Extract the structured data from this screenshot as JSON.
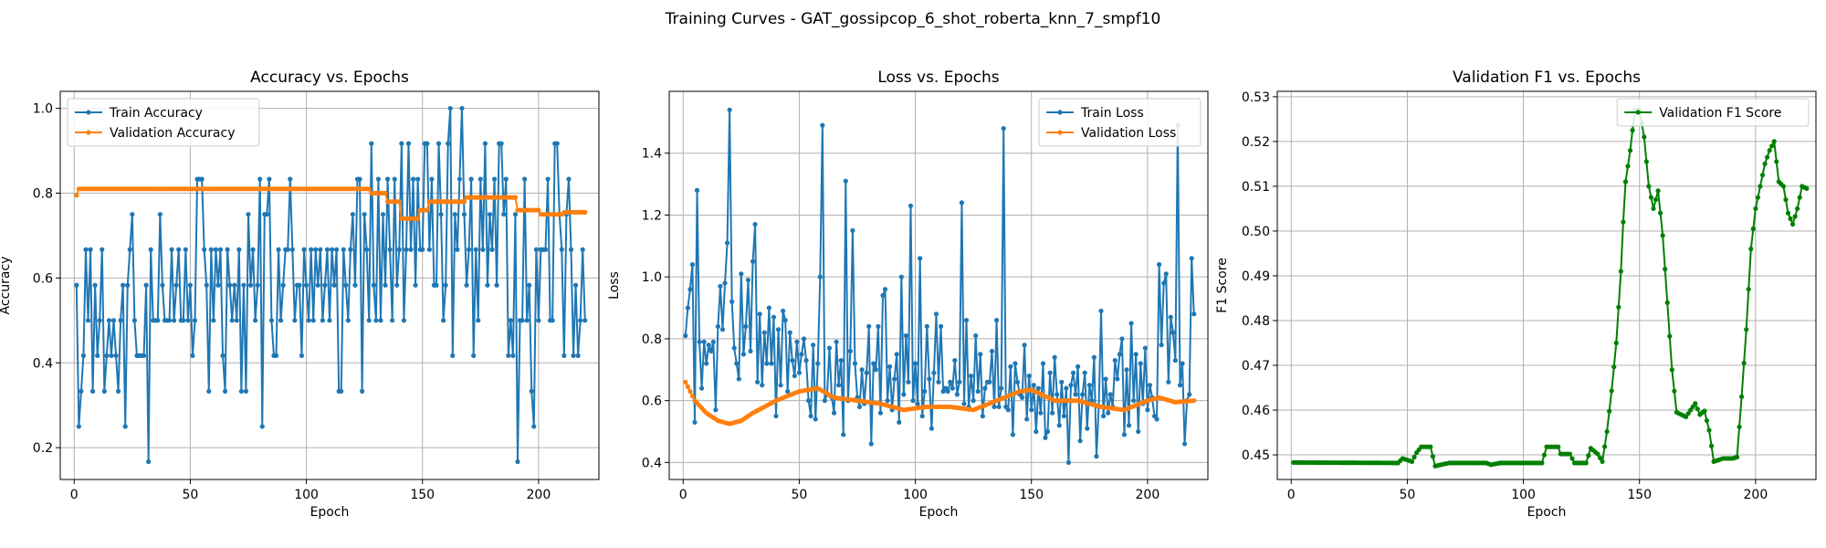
{
  "figure": {
    "title": "Training Curves - GAT_gossipcop_6_shot_roberta_knn_7_smpf10"
  },
  "colors": {
    "train": "#1f77b4",
    "validation": "#ff7f0e",
    "f1": "#008000"
  },
  "chart_data": [
    {
      "type": "line",
      "title": "Accuracy vs. Epochs",
      "xlabel": "Epoch",
      "ylabel": "Accuracy",
      "xlim": [
        -6,
        226
      ],
      "ylim": [
        0.125,
        1.04
      ],
      "xticks": [
        0,
        50,
        100,
        150,
        200
      ],
      "yticks": [
        0.2,
        0.4,
        0.6,
        0.8,
        1.0
      ],
      "ytick_labels": [
        "0.2",
        "0.4",
        "0.6",
        "0.8",
        "1.0"
      ],
      "grid": true,
      "legend_position": "upper left",
      "series": [
        {
          "name": "Train Accuracy",
          "color": "#1f77b4",
          "start_epoch": 1,
          "values": [
            0.583,
            0.25,
            0.333,
            0.417,
            0.667,
            0.5,
            0.667,
            0.333,
            0.583,
            0.417,
            0.5,
            0.667,
            0.333,
            0.417,
            0.5,
            0.417,
            0.5,
            0.417,
            0.333,
            0.5,
            0.583,
            0.25,
            0.583,
            0.667,
            0.75,
            0.5,
            0.417,
            0.417,
            0.417,
            0.417,
            0.583,
            0.167,
            0.667,
            0.5,
            0.5,
            0.5,
            0.75,
            0.583,
            0.5,
            0.5,
            0.5,
            0.667,
            0.5,
            0.583,
            0.667,
            0.5,
            0.5,
            0.667,
            0.5,
            0.583,
            0.417,
            0.5,
            0.833,
            0.833,
            0.833,
            0.667,
            0.583,
            0.333,
            0.667,
            0.5,
            0.667,
            0.583,
            0.667,
            0.417,
            0.333,
            0.667,
            0.583,
            0.5,
            0.583,
            0.5,
            0.667,
            0.333,
            0.583,
            0.333,
            0.75,
            0.583,
            0.667,
            0.5,
            0.583,
            0.833,
            0.25,
            0.75,
            0.75,
            0.833,
            0.5,
            0.417,
            0.417,
            0.667,
            0.5,
            0.583,
            0.667,
            0.667,
            0.833,
            0.667,
            0.5,
            0.583,
            0.583,
            0.417,
            0.667,
            0.583,
            0.5,
            0.667,
            0.5,
            0.667,
            0.583,
            0.667,
            0.5,
            0.583,
            0.667,
            0.5,
            0.667,
            0.583,
            0.667,
            0.333,
            0.333,
            0.667,
            0.583,
            0.5,
            0.667,
            0.75,
            0.583,
            0.833,
            0.833,
            0.333,
            0.75,
            0.667,
            0.5,
            0.917,
            0.583,
            0.5,
            0.833,
            0.5,
            0.75,
            0.583,
            0.833,
            0.667,
            0.5,
            0.833,
            0.583,
            0.667,
            0.917,
            0.5,
            0.667,
            0.917,
            0.667,
            0.833,
            0.583,
            0.833,
            0.667,
            0.667,
            0.917,
            0.917,
            0.667,
            0.833,
            0.583,
            0.583,
            0.917,
            0.75,
            0.5,
            0.583,
            0.917,
            1.0,
            0.417,
            0.75,
            0.667,
            0.833,
            1.0,
            0.75,
            0.583,
            0.667,
            0.833,
            0.417,
            0.667,
            0.5,
            0.833,
            0.667,
            0.917,
            0.583,
            0.75,
            0.667,
            0.833,
            0.583,
            0.917,
            0.917,
            0.75,
            0.833
          ],
          "note_values": "rendered as extended sequence below"
        },
        {
          "name": "Validation Accuracy",
          "color": "#ff7f0e",
          "start_epoch": 1,
          "segments": [
            {
              "from": 1,
              "to": 1,
              "value": 0.795
            },
            {
              "from": 2,
              "to": 127,
              "value": 0.81
            },
            {
              "from": 128,
              "to": 134,
              "value": 0.8
            },
            {
              "from": 135,
              "to": 140,
              "value": 0.78
            },
            {
              "from": 141,
              "to": 148,
              "value": 0.74
            },
            {
              "from": 149,
              "to": 152,
              "value": 0.76
            },
            {
              "from": 153,
              "to": 168,
              "value": 0.78
            },
            {
              "from": 169,
              "to": 190,
              "value": 0.79
            },
            {
              "from": 191,
              "to": 200,
              "value": 0.76
            },
            {
              "from": 201,
              "to": 210,
              "value": 0.75
            },
            {
              "from": 211,
              "to": 220,
              "value": 0.755
            }
          ]
        }
      ]
    },
    {
      "type": "line",
      "title": "Loss vs. Epochs",
      "xlabel": "Epoch",
      "ylabel": "Loss",
      "xlim": [
        -6,
        226
      ],
      "ylim": [
        0.345,
        1.6
      ],
      "xticks": [
        0,
        50,
        100,
        150,
        200
      ],
      "yticks": [
        0.4,
        0.6,
        0.8,
        1.0,
        1.2,
        1.4
      ],
      "ytick_labels": [
        "0.4",
        "0.6",
        "0.8",
        "1.0",
        "1.2",
        "1.4"
      ],
      "grid": true,
      "legend_position": "upper right",
      "series": [
        {
          "name": "Train Loss",
          "color": "#1f77b4",
          "start_epoch": 1,
          "values": [
            0.81,
            0.9,
            0.96,
            1.04,
            0.53,
            1.28,
            0.79,
            0.64,
            0.79,
            0.72,
            0.78,
            0.76,
            0.79,
            0.57,
            0.84,
            0.97,
            0.83,
            0.98,
            1.11,
            1.54,
            0.92,
            0.77,
            0.72,
            0.67,
            1.01,
            0.75,
            0.84,
            0.99,
            0.76,
            1.05,
            1.17,
            0.66,
            0.88,
            0.65,
            0.82,
            0.72,
            0.9,
            0.72,
            0.87,
            0.55,
            0.83,
            0.65,
            0.89,
            0.86,
            0.63,
            0.82,
            0.73,
            0.68,
            0.79,
            0.69,
            0.75,
            0.8,
            0.73,
            0.6,
            0.55,
            0.78,
            0.54,
            0.72,
            1.0,
            1.49,
            0.6,
            0.62,
            0.77,
            0.61,
            0.56,
            0.79,
            0.65,
            0.73,
            0.49,
            1.31,
            0.6,
            0.76,
            1.15,
            0.72,
            0.61,
            0.58,
            0.7,
            0.59,
            0.69,
            0.84,
            0.46,
            0.72,
            0.7,
            0.84,
            0.56,
            0.94,
            0.96,
            0.6,
            0.71,
            0.57,
            0.67,
            0.75,
            0.53,
            1.0,
            0.62,
            0.81,
            0.66,
            1.23,
            0.6,
            0.72,
            0.59,
            1.06,
            0.55,
            0.63,
            0.84,
            0.67,
            0.51,
            0.69,
            0.88,
            0.66,
            0.84,
            0.63,
            0.64,
            0.63,
            0.66,
            0.64,
            0.73,
            0.62,
            0.66,
            1.24,
            0.59,
            0.86,
            0.58,
            0.68,
            0.6,
            0.81,
            0.63,
            0.75,
            0.55,
            0.64,
            0.66,
            0.66,
            0.76,
            0.58,
            0.86,
            0.58,
            0.64,
            1.48,
            0.58,
            0.57,
            0.71,
            0.49,
            0.72,
            0.66,
            0.62,
            0.61,
            0.78,
            0.54,
            0.68,
            0.57,
            0.65,
            0.5,
            0.64,
            0.56,
            0.72,
            0.48,
            0.5,
            0.69,
            0.56,
            0.74,
            0.62,
            0.52,
            0.66,
            0.55,
            0.64,
            0.4,
            0.65,
            0.69,
            0.62,
            0.71,
            0.47,
            0.62,
            0.69,
            0.51,
            0.65,
            0.6,
            0.74,
            0.42,
            0.58,
            0.89,
            0.55,
            0.67,
            0.56,
            0.62,
            0.58,
            0.73,
            0.67,
            0.75,
            0.8,
            0.49,
            0.7,
            0.52,
            0.85,
            0.6,
            0.75,
            0.5,
            0.72,
            0.59,
            0.77,
            0.57,
            0.65,
            0.61,
            0.55,
            0.54
          ],
          "note_values": "rendered as extended sequence below"
        },
        {
          "name": "Validation Loss",
          "color": "#ff7f0e",
          "start_epoch": 1,
          "keyframes": [
            [
              1,
              0.66
            ],
            [
              5,
              0.6
            ],
            [
              10,
              0.56
            ],
            [
              15,
              0.535
            ],
            [
              20,
              0.525
            ],
            [
              25,
              0.535
            ],
            [
              30,
              0.56
            ],
            [
              40,
              0.6
            ],
            [
              50,
              0.63
            ],
            [
              58,
              0.64
            ],
            [
              65,
              0.61
            ],
            [
              75,
              0.6
            ],
            [
              85,
              0.59
            ],
            [
              95,
              0.57
            ],
            [
              105,
              0.58
            ],
            [
              115,
              0.58
            ],
            [
              125,
              0.57
            ],
            [
              135,
              0.6
            ],
            [
              145,
              0.63
            ],
            [
              150,
              0.635
            ],
            [
              160,
              0.6
            ],
            [
              170,
              0.6
            ],
            [
              180,
              0.58
            ],
            [
              190,
              0.57
            ],
            [
              200,
              0.6
            ],
            [
              205,
              0.61
            ],
            [
              212,
              0.595
            ],
            [
              220,
              0.6
            ]
          ]
        }
      ]
    },
    {
      "type": "line",
      "title": "Validation F1 vs. Epochs",
      "xlabel": "Epoch",
      "ylabel": "F1 Score",
      "xlim": [
        -6,
        226
      ],
      "ylim": [
        0.4445,
        0.5312
      ],
      "xticks": [
        0,
        50,
        100,
        150,
        200
      ],
      "yticks": [
        0.45,
        0.46,
        0.47,
        0.48,
        0.49,
        0.5,
        0.51,
        0.52,
        0.53
      ],
      "ytick_labels": [
        "0.45",
        "0.46",
        "0.47",
        "0.48",
        "0.49",
        "0.50",
        "0.51",
        "0.52",
        "0.53"
      ],
      "grid": true,
      "legend_position": "upper right",
      "series": [
        {
          "name": "Validation F1 Score",
          "color": "#008000",
          "start_epoch": 1,
          "keyframes": [
            [
              1,
              0.4483
            ],
            [
              46,
              0.4482
            ],
            [
              48,
              0.4492
            ],
            [
              52,
              0.4485
            ],
            [
              54,
              0.4505
            ],
            [
              56,
              0.4518
            ],
            [
              60,
              0.4518
            ],
            [
              62,
              0.4475
            ],
            [
              68,
              0.4482
            ],
            [
              84,
              0.4482
            ],
            [
              86,
              0.4478
            ],
            [
              90,
              0.4482
            ],
            [
              108,
              0.4482
            ],
            [
              110,
              0.4518
            ],
            [
              115,
              0.4518
            ],
            [
              116,
              0.4502
            ],
            [
              120,
              0.4502
            ],
            [
              122,
              0.4482
            ],
            [
              127,
              0.4482
            ],
            [
              129,
              0.4515
            ],
            [
              132,
              0.4502
            ],
            [
              134,
              0.4485
            ],
            [
              136,
              0.4552
            ],
            [
              138,
              0.4643
            ],
            [
              140,
              0.475
            ],
            [
              142,
              0.491
            ],
            [
              143,
              0.502
            ],
            [
              144,
              0.511
            ],
            [
              146,
              0.518
            ],
            [
              148,
              0.527
            ],
            [
              150,
              0.527
            ],
            [
              152,
              0.521
            ],
            [
              154,
              0.51
            ],
            [
              156,
              0.505
            ],
            [
              158,
              0.509
            ],
            [
              160,
              0.499
            ],
            [
              162,
              0.484
            ],
            [
              164,
              0.469
            ],
            [
              166,
              0.4595
            ],
            [
              170,
              0.4585
            ],
            [
              174,
              0.4615
            ],
            [
              176,
              0.459
            ],
            [
              178,
              0.4598
            ],
            [
              180,
              0.4555
            ],
            [
              182,
              0.4485
            ],
            [
              186,
              0.4492
            ],
            [
              190,
              0.4492
            ],
            [
              192,
              0.4495
            ],
            [
              194,
              0.463
            ],
            [
              196,
              0.478
            ],
            [
              198,
              0.496
            ],
            [
              200,
              0.505
            ],
            [
              202,
              0.51
            ],
            [
              204,
              0.515
            ],
            [
              206,
              0.518
            ],
            [
              208,
              0.52
            ],
            [
              210,
              0.511
            ],
            [
              212,
              0.51
            ],
            [
              214,
              0.504
            ],
            [
              216,
              0.5015
            ],
            [
              218,
              0.505
            ],
            [
              220,
              0.51
            ],
            [
              222,
              0.5095
            ]
          ]
        }
      ]
    }
  ]
}
